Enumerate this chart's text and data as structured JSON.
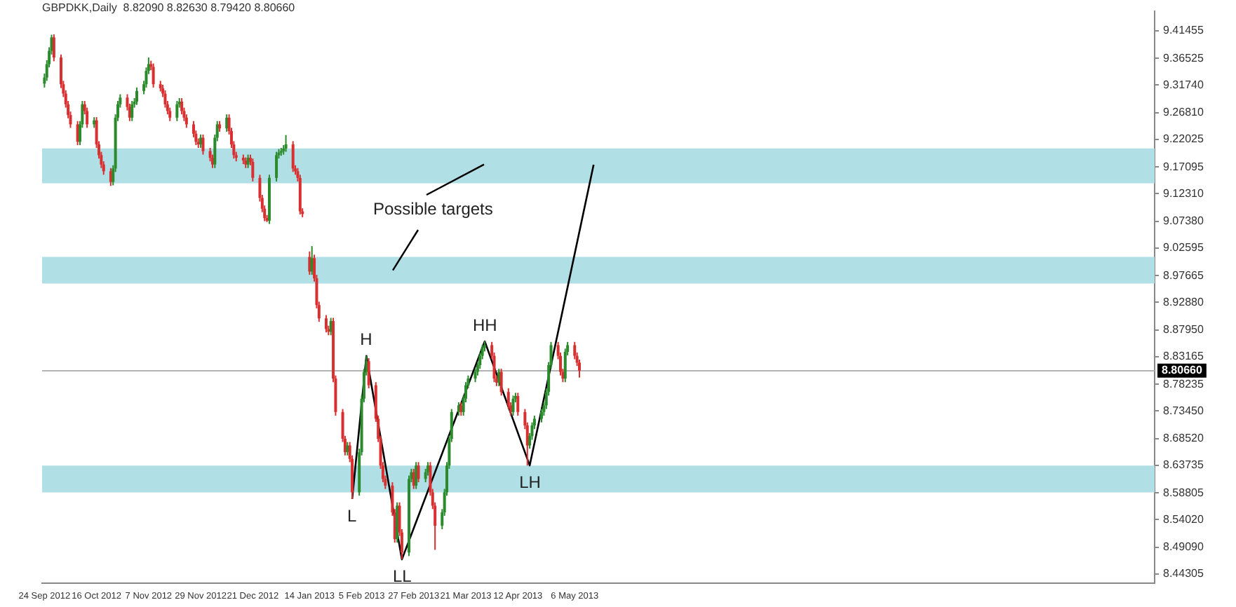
{
  "chart_data": {
    "type": "candlestick",
    "title": "GBPDKK,Daily  8.82090 8.82630 8.79420 8.80660",
    "x": [
      "2012-09-24",
      "2012-09-25",
      "2012-09-26",
      "2012-09-27",
      "2012-09-28",
      "2012-10-01",
      "2012-10-02",
      "2012-10-03",
      "2012-10-04",
      "2012-10-05",
      "2012-10-08",
      "2012-10-09",
      "2012-10-10",
      "2012-10-11",
      "2012-10-12",
      "2012-10-15",
      "2012-10-16",
      "2012-10-17",
      "2012-10-18",
      "2012-10-19",
      "2012-10-22",
      "2012-10-23",
      "2012-10-24",
      "2012-10-25",
      "2012-10-26",
      "2012-10-29",
      "2012-10-30",
      "2012-10-31",
      "2012-11-01",
      "2012-11-02",
      "2012-11-05",
      "2012-11-06",
      "2012-11-07",
      "2012-11-08",
      "2012-11-09",
      "2012-11-12",
      "2012-11-13",
      "2012-11-14",
      "2012-11-15",
      "2012-11-16",
      "2012-11-19",
      "2012-11-20",
      "2012-11-21",
      "2012-11-22",
      "2012-11-23",
      "2012-11-26",
      "2012-11-27",
      "2012-11-28",
      "2012-11-29",
      "2012-11-30",
      "2012-12-03",
      "2012-12-04",
      "2012-12-05",
      "2012-12-06",
      "2012-12-07",
      "2012-12-10",
      "2012-12-11",
      "2012-12-12",
      "2012-12-13",
      "2012-12-14",
      "2012-12-17",
      "2012-12-18",
      "2012-12-19",
      "2012-12-20",
      "2012-12-21",
      "2012-12-24",
      "2012-12-25",
      "2012-12-26",
      "2012-12-27",
      "2012-12-28",
      "2012-12-31",
      "2013-01-01",
      "2013-01-02",
      "2013-01-03",
      "2013-01-04",
      "2013-01-07",
      "2013-01-08",
      "2013-01-09",
      "2013-01-10",
      "2013-01-11",
      "2013-01-14",
      "2013-01-15",
      "2013-01-16",
      "2013-01-17",
      "2013-01-18",
      "2013-01-21",
      "2013-01-22",
      "2013-01-23",
      "2013-01-24",
      "2013-01-25",
      "2013-01-28",
      "2013-01-29",
      "2013-01-30",
      "2013-01-31",
      "2013-02-01",
      "2013-02-04",
      "2013-02-05",
      "2013-02-06",
      "2013-02-07",
      "2013-02-08",
      "2013-02-11",
      "2013-02-12",
      "2013-02-13",
      "2013-02-14",
      "2013-02-15",
      "2013-02-18",
      "2013-02-19",
      "2013-02-20",
      "2013-02-21",
      "2013-02-22",
      "2013-02-25",
      "2013-02-26",
      "2013-02-27",
      "2013-02-28",
      "2013-03-01",
      "2013-03-04",
      "2013-03-05",
      "2013-03-06",
      "2013-03-07",
      "2013-03-08",
      "2013-03-11",
      "2013-03-12",
      "2013-03-13",
      "2013-03-14",
      "2013-03-15",
      "2013-03-18",
      "2013-03-19",
      "2013-03-20",
      "2013-03-21",
      "2013-03-22",
      "2013-03-25",
      "2013-03-26",
      "2013-03-27",
      "2013-03-28",
      "2013-03-29",
      "2013-04-01",
      "2013-04-02",
      "2013-04-03",
      "2013-04-04",
      "2013-04-05",
      "2013-04-08",
      "2013-04-09",
      "2013-04-10",
      "2013-04-11",
      "2013-04-12",
      "2013-04-15",
      "2013-04-16",
      "2013-04-17",
      "2013-04-18",
      "2013-04-19",
      "2013-04-22",
      "2013-04-23",
      "2013-04-24",
      "2013-04-25",
      "2013-04-26",
      "2013-04-29",
      "2013-04-30",
      "2013-05-01",
      "2013-05-02",
      "2013-05-03",
      "2013-05-06",
      "2013-05-07",
      "2013-05-08"
    ],
    "ohlc": [
      [
        9.32,
        9.338,
        9.313,
        9.3308
      ],
      [
        9.3308,
        9.362,
        9.325,
        9.3548
      ],
      [
        9.3548,
        9.385,
        9.349,
        9.3787
      ],
      [
        9.3787,
        9.4074,
        9.372,
        9.4026
      ],
      [
        9.4026,
        9.408,
        9.36,
        9.3667
      ],
      [
        9.3667,
        9.372,
        9.312,
        9.3189
      ],
      [
        9.3189,
        9.325,
        9.296,
        9.3021
      ],
      [
        9.3021,
        9.308,
        9.277,
        9.283
      ],
      [
        9.283,
        9.289,
        9.258,
        9.2638
      ],
      [
        9.2638,
        9.27,
        9.241,
        9.2471
      ],
      [
        9.2471,
        9.253,
        9.21,
        9.216
      ],
      [
        9.216,
        9.253,
        9.21,
        9.2471
      ],
      [
        9.2471,
        9.289,
        9.241,
        9.283
      ],
      [
        9.283,
        9.289,
        9.265,
        9.271
      ],
      [
        9.271,
        9.277,
        9.241,
        9.2471
      ],
      [
        9.2471,
        9.26,
        9.241,
        9.2543
      ],
      [
        9.2543,
        9.26,
        9.205,
        9.2112
      ],
      [
        9.2112,
        9.217,
        9.186,
        9.1921
      ],
      [
        9.1921,
        9.198,
        9.169,
        9.1753
      ],
      [
        9.1753,
        9.181,
        9.157,
        9.1633
      ],
      [
        9.1633,
        9.169,
        9.137,
        9.1442
      ],
      [
        9.1442,
        9.174,
        9.138,
        9.1681
      ],
      [
        9.1681,
        9.265,
        9.162,
        9.2591
      ],
      [
        9.2591,
        9.289,
        9.253,
        9.283
      ],
      [
        9.283,
        9.301,
        9.277,
        9.295
      ],
      [
        9.295,
        9.301,
        9.272,
        9.2782
      ],
      [
        9.2782,
        9.284,
        9.253,
        9.2591
      ],
      [
        9.2591,
        9.289,
        9.253,
        9.283
      ],
      [
        9.283,
        9.294,
        9.277,
        9.2878
      ],
      [
        9.2878,
        9.313,
        9.282,
        9.3069
      ],
      [
        9.3069,
        9.325,
        9.301,
        9.3189
      ],
      [
        9.3189,
        9.349,
        9.313,
        9.3428
      ],
      [
        9.3428,
        9.3667,
        9.337,
        9.3548
      ],
      [
        9.3548,
        9.361,
        9.344,
        9.35
      ],
      [
        9.35,
        9.356,
        9.313,
        9.3189
      ],
      [
        9.3189,
        9.325,
        9.306,
        9.3117
      ],
      [
        9.3117,
        9.318,
        9.296,
        9.3021
      ],
      [
        9.3021,
        9.308,
        9.277,
        9.283
      ],
      [
        9.283,
        9.289,
        9.265,
        9.271
      ],
      [
        9.271,
        9.277,
        9.253,
        9.2591
      ],
      [
        9.2591,
        9.289,
        9.253,
        9.283
      ],
      [
        9.283,
        9.294,
        9.277,
        9.2878
      ],
      [
        9.2878,
        9.294,
        9.265,
        9.271
      ],
      [
        9.271,
        9.277,
        9.253,
        9.2591
      ],
      [
        9.2591,
        9.265,
        9.241,
        9.2471
      ],
      [
        9.2471,
        9.253,
        9.224,
        9.2303
      ],
      [
        9.2303,
        9.236,
        9.21,
        9.216
      ],
      [
        9.216,
        9.222,
        9.205,
        9.2112
      ],
      [
        9.2112,
        9.229,
        9.205,
        9.2232
      ],
      [
        9.2232,
        9.229,
        9.193,
        9.1992
      ],
      [
        9.1992,
        9.205,
        9.181,
        9.1873
      ],
      [
        9.1873,
        9.193,
        9.169,
        9.1753
      ],
      [
        9.1753,
        9.229,
        9.169,
        9.2232
      ],
      [
        9.2232,
        9.253,
        9.217,
        9.2471
      ],
      [
        9.2471,
        9.253,
        9.234,
        9.2399
      ],
      [
        9.2399,
        9.265,
        9.234,
        9.2591
      ],
      [
        9.2591,
        9.265,
        9.229,
        9.2351
      ],
      [
        9.2351,
        9.241,
        9.205,
        9.2112
      ],
      [
        9.2112,
        9.217,
        9.186,
        9.1921
      ],
      [
        9.1921,
        9.198,
        9.181,
        9.1873
      ],
      [
        9.1873,
        9.193,
        9.176,
        9.1825
      ],
      [
        9.1825,
        9.188,
        9.169,
        9.1753
      ],
      [
        9.1753,
        9.193,
        9.169,
        9.1873
      ],
      [
        9.1873,
        9.193,
        9.174,
        9.1801
      ],
      [
        9.1801,
        9.186,
        9.145,
        9.1514
      ],
      [
        9.1514,
        9.157,
        9.109,
        9.1155
      ],
      [
        9.1155,
        9.121,
        9.09,
        9.0963
      ],
      [
        9.0963,
        9.102,
        9.074,
        9.0796
      ],
      [
        9.0796,
        9.085,
        9.0724,
        9.0748
      ],
      [
        9.0748,
        9.157,
        9.069,
        9.1514
      ],
      [
        9.1514,
        9.198,
        9.145,
        9.1921
      ],
      [
        9.1921,
        9.203,
        9.186,
        9.1968
      ],
      [
        9.1968,
        9.205,
        9.191,
        9.1992
      ],
      [
        9.1992,
        9.21,
        9.193,
        9.204
      ],
      [
        9.204,
        9.228,
        9.198,
        9.2112
      ],
      [
        9.2112,
        9.217,
        9.162,
        9.1681
      ],
      [
        9.1681,
        9.174,
        9.157,
        9.1633
      ],
      [
        9.1633,
        9.169,
        9.145,
        9.1514
      ],
      [
        9.1514,
        9.157,
        9.086,
        9.0915
      ],
      [
        9.0915,
        9.097,
        9.081,
        9.0868
      ],
      [
        9.01,
        9.0198,
        8.978,
        8.9839
      ],
      [
        8.9839,
        9.0294,
        8.978,
        9.0078
      ],
      [
        9.0078,
        9.014,
        8.966,
        8.9719
      ],
      [
        8.9719,
        8.978,
        8.918,
        8.924
      ],
      [
        8.924,
        8.93,
        8.894,
        8.9001
      ],
      [
        8.9001,
        8.906,
        8.875,
        8.881
      ],
      [
        8.881,
        8.887,
        8.87,
        8.8762
      ],
      [
        8.8762,
        8.901,
        8.87,
        8.8953
      ],
      [
        8.8953,
        8.901,
        8.786,
        8.7924
      ],
      [
        8.7924,
        8.798,
        8.726,
        8.7326
      ],
      [
        8.7326,
        8.738,
        8.679,
        8.6847
      ],
      [
        8.6847,
        8.69,
        8.655,
        8.6608
      ],
      [
        8.6608,
        8.679,
        8.655,
        8.6728
      ],
      [
        8.6728,
        8.679,
        8.643,
        8.6488
      ],
      [
        8.6488,
        8.655,
        8.5771,
        8.589
      ],
      [
        8.589,
        8.667,
        8.583,
        8.6608
      ],
      [
        8.6608,
        8.762,
        8.655,
        8.7565
      ],
      [
        8.7565,
        8.81,
        8.75,
        8.8044
      ],
      [
        8.8044,
        8.8331,
        8.798,
        8.8235
      ],
      [
        8.8235,
        8.829,
        8.775,
        8.7805
      ],
      [
        8.7805,
        8.786,
        8.715,
        8.7206
      ],
      [
        8.7206,
        8.726,
        8.679,
        8.6847
      ],
      [
        8.6847,
        8.69,
        8.631,
        8.6369
      ],
      [
        8.6369,
        8.643,
        8.607,
        8.6129
      ],
      [
        8.6129,
        8.619,
        8.595,
        8.601
      ],
      [
        8.601,
        8.607,
        8.547,
        8.5531
      ],
      [
        8.5531,
        8.559,
        8.499,
        8.5053
      ],
      [
        8.5053,
        8.571,
        8.499,
        8.5651
      ],
      [
        8.5651,
        8.571,
        8.511,
        8.5172
      ],
      [
        8.5172,
        8.523,
        8.4694,
        8.4813
      ],
      [
        8.4813,
        8.619,
        8.475,
        8.6129
      ],
      [
        8.6129,
        8.631,
        8.607,
        8.6249
      ],
      [
        8.6249,
        8.631,
        8.595,
        8.601
      ],
      [
        8.601,
        8.643,
        8.595,
        8.6369
      ],
      [
        8.6369,
        8.643,
        8.607,
        8.6129
      ],
      [
        8.6129,
        8.631,
        8.607,
        8.6249
      ],
      [
        8.6249,
        8.643,
        8.619,
        8.6369
      ],
      [
        8.6369,
        8.643,
        8.583,
        8.589
      ],
      [
        8.589,
        8.595,
        8.559,
        8.5651
      ],
      [
        8.5651,
        8.571,
        8.4861,
        8.5292
      ],
      [
        8.5292,
        8.559,
        8.523,
        8.5531
      ],
      [
        8.5531,
        8.595,
        8.547,
        8.589
      ],
      [
        8.589,
        8.643,
        8.583,
        8.6369
      ],
      [
        8.6369,
        8.69,
        8.631,
        8.6847
      ],
      [
        8.6847,
        8.738,
        8.679,
        8.7326
      ],
      [
        8.7326,
        8.75,
        8.726,
        8.7446
      ],
      [
        8.7446,
        8.75,
        8.726,
        8.7326
      ],
      [
        8.7326,
        8.762,
        8.726,
        8.7565
      ],
      [
        8.7565,
        8.786,
        8.75,
        8.7805
      ],
      [
        8.7805,
        8.798,
        8.775,
        8.7924
      ],
      [
        8.7924,
        8.81,
        8.786,
        8.8044
      ],
      [
        8.8044,
        8.822,
        8.798,
        8.8164
      ],
      [
        8.8164,
        8.839,
        8.81,
        8.8331
      ],
      [
        8.8331,
        8.853,
        8.827,
        8.8475
      ],
      [
        8.8475,
        8.8594,
        8.841,
        8.8522
      ],
      [
        8.8522,
        8.858,
        8.827,
        8.8331
      ],
      [
        8.8331,
        8.839,
        8.786,
        8.7924
      ],
      [
        8.7924,
        8.798,
        8.779,
        8.7852
      ],
      [
        8.7852,
        8.81,
        8.779,
        8.8044
      ],
      [
        8.8044,
        8.81,
        8.762,
        8.7685
      ],
      [
        8.7685,
        8.775,
        8.738,
        8.7446
      ],
      [
        8.7446,
        8.75,
        8.726,
        8.7326
      ],
      [
        8.7326,
        8.762,
        8.726,
        8.7565
      ],
      [
        8.7565,
        8.767,
        8.75,
        8.7613
      ],
      [
        8.7613,
        8.767,
        8.726,
        8.7326
      ],
      [
        8.7326,
        8.738,
        8.702,
        8.7087
      ],
      [
        8.7087,
        8.714,
        8.6369,
        8.6728
      ],
      [
        8.6728,
        8.695,
        8.667,
        8.6895
      ],
      [
        8.6895,
        8.714,
        8.683,
        8.7087
      ],
      [
        8.7087,
        8.726,
        8.702,
        8.7206
      ],
      [
        8.7206,
        8.738,
        8.714,
        8.7326
      ],
      [
        8.7326,
        8.75,
        8.726,
        8.7446
      ],
      [
        8.7446,
        8.775,
        8.738,
        8.7685
      ],
      [
        8.7685,
        8.822,
        8.762,
        8.8164
      ],
      [
        8.8164,
        8.858,
        8.81,
        8.8522
      ],
      [
        8.8522,
        8.858,
        8.827,
        8.8331
      ],
      [
        8.8331,
        8.839,
        8.798,
        8.8044
      ],
      [
        8.8044,
        8.81,
        8.786,
        8.7924
      ],
      [
        8.7924,
        8.846,
        8.786,
        8.8402
      ],
      [
        8.8402,
        8.858,
        8.834,
        8.8522
      ],
      [
        8.8522,
        8.858,
        8.827,
        8.8331
      ],
      [
        8.8331,
        8.839,
        8.815,
        8.8209
      ],
      [
        8.8209,
        8.8263,
        8.7942,
        8.8066
      ]
    ],
    "series": [
      {
        "type": "line",
        "color": "#000000",
        "x": [
          "2013-02-01",
          "2013-02-07",
          "2013-02-22",
          "2013-03-29",
          "2013-04-17",
          "2013-05-14"
        ],
        "values": [
          8.577,
          8.833,
          8.469,
          8.859,
          8.637,
          9.175
        ]
      }
    ],
    "xlim": [
      "2012-09-23",
      "2014-01-06"
    ],
    "xticks": [
      {
        "value": "2012-09-24",
        "label": "24 Sep 2012"
      },
      {
        "value": "2012-10-16",
        "label": "16 Oct 2012"
      },
      {
        "value": "2012-11-07",
        "label": "7 Nov 2012"
      },
      {
        "value": "2012-11-29",
        "label": "29 Nov 2012"
      },
      {
        "value": "2012-12-21",
        "label": "21 Dec 2012"
      },
      {
        "value": "2013-01-14",
        "label": "14 Jan 2013"
      },
      {
        "value": "2013-02-05",
        "label": "5 Feb 2013"
      },
      {
        "value": "2013-02-27",
        "label": "27 Feb 2013"
      },
      {
        "value": "2013-03-21",
        "label": "21 Mar 2013"
      },
      {
        "value": "2013-04-12",
        "label": "12 Apr 2013"
      },
      {
        "value": "2013-05-06",
        "label": "6 May 2013"
      }
    ],
    "ylim": [
      8.426,
      9.45
    ],
    "yticks": [
      9.41455,
      9.36525,
      {
        "value": 9.3174,
        "label": "9.31740"
      },
      {
        "value": 9.2681,
        "label": "9.26810"
      },
      9.22025,
      9.17095,
      {
        "value": 9.1231,
        "label": "9.12310"
      },
      {
        "value": 9.0738,
        "label": "9.07380"
      },
      9.02595,
      8.97665,
      {
        "value": 8.9288,
        "label": "8.92880"
      },
      {
        "value": 8.8795,
        "label": "8.87950"
      },
      8.83165,
      8.78235,
      {
        "value": 8.7345,
        "label": "8.73450"
      },
      {
        "value": 8.6852,
        "label": "8.68520"
      },
      8.63735,
      8.58805,
      {
        "value": 8.5402,
        "label": "8.54020"
      },
      {
        "value": 8.4909,
        "label": "8.49090"
      },
      8.44305
    ],
    "ref_lines": [
      {
        "axis": "y",
        "value": 8.8066,
        "label": "8.80660",
        "color": "#b4b4b4"
      }
    ],
    "bands": [
      {
        "axis": "y",
        "from": 9.1418,
        "to": 9.204,
        "color": "#b0dfe5"
      },
      {
        "axis": "y",
        "from": 8.9623,
        "to": 9.0102,
        "color": "#b0dfe5"
      },
      {
        "axis": "y",
        "from": 8.589,
        "to": 8.6369,
        "color": "#b0dfe5"
      }
    ],
    "annotations": [
      "Possible targets",
      "L",
      "H",
      "LL",
      "HH",
      "LH"
    ],
    "grid": false,
    "legend": false
  }
}
